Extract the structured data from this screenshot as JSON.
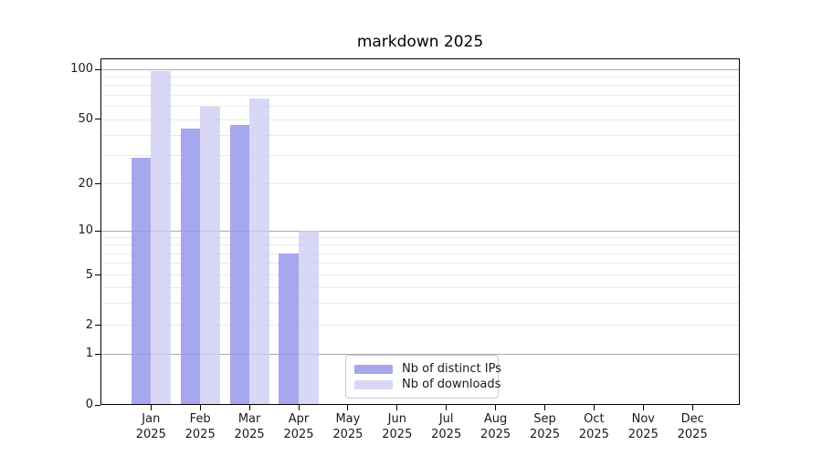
{
  "title": "markdown 2025",
  "legend": {
    "items": [
      {
        "label": "Nb of distinct IPs",
        "color": "#a6a6ef"
      },
      {
        "label": "Nb of downloads",
        "color": "#d7d7f5"
      }
    ]
  },
  "colors": {
    "bar_distinct_ips": "rgba(152,152,237,0.85)",
    "bar_downloads": "rgba(203,203,243,0.75)",
    "grid_major": "#ababab",
    "grid_minor": "#e9e9e9",
    "axis": "#000000"
  },
  "chart_data": {
    "type": "bar",
    "title": "markdown 2025",
    "categories": [
      "Jan",
      "Feb",
      "Mar",
      "Apr",
      "May",
      "Jun",
      "Jul",
      "Aug",
      "Sep",
      "Oct",
      "Nov",
      "Dec"
    ],
    "category_year": "2025",
    "series": [
      {
        "name": "Nb of distinct IPs",
        "values": [
          29,
          44,
          46,
          7,
          0,
          0,
          0,
          0,
          0,
          0,
          0,
          0
        ]
      },
      {
        "name": "Nb of downloads",
        "values": [
          97,
          60,
          67,
          10,
          0,
          0,
          0,
          0,
          0,
          0,
          0,
          0
        ]
      }
    ],
    "ylabel": "",
    "xlabel": "",
    "yscale": "log-like (linear below 1)",
    "ytick_values": [
      0,
      1,
      2,
      5,
      10,
      20,
      50,
      100
    ],
    "grid_major_values": [
      1,
      10,
      100
    ],
    "grid_minor_values": [
      2,
      3,
      4,
      5,
      6,
      7,
      8,
      9,
      20,
      30,
      40,
      50,
      60,
      70,
      80,
      90
    ],
    "yscale_anchors": [
      [
        0,
        0.0
      ],
      [
        1,
        0.1461
      ],
      [
        2,
        0.2297
      ],
      [
        5,
        0.3745
      ],
      [
        10,
        0.5018
      ],
      [
        20,
        0.6376
      ],
      [
        50,
        0.8237
      ],
      [
        100,
        0.9684
      ]
    ],
    "legend_position": "lower center, inside axes",
    "grid": "on"
  }
}
